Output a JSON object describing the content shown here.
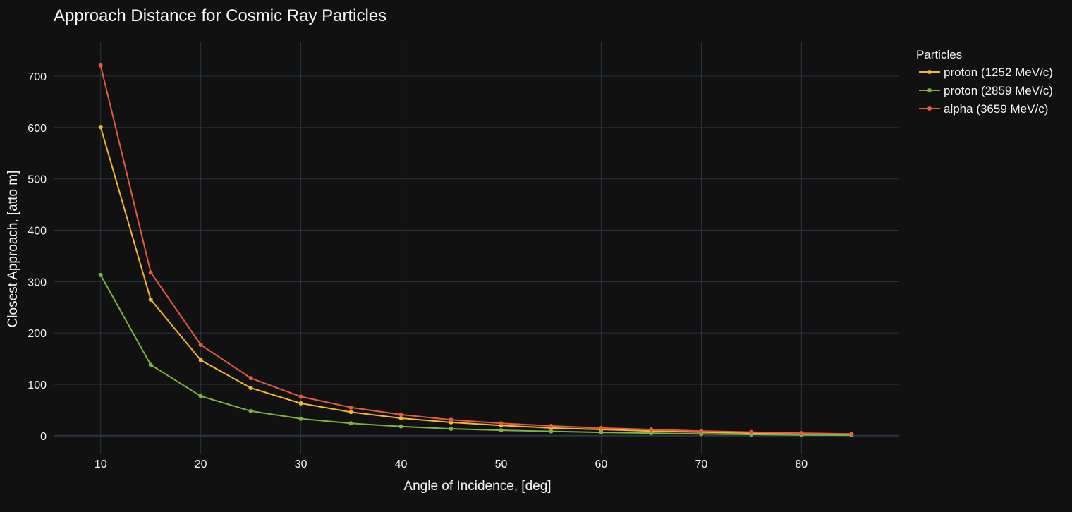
{
  "chart_data": {
    "type": "line",
    "title": "Approach Distance for Cosmic Ray Particles",
    "xlabel": "Angle of Incidence, [deg]",
    "ylabel": "Closest Approach, [atto m]",
    "x": [
      10,
      15,
      20,
      25,
      30,
      35,
      40,
      45,
      50,
      55,
      60,
      65,
      70,
      75,
      80,
      85
    ],
    "xlim": [
      5.3,
      89.7
    ],
    "ylim": [
      -36,
      766
    ],
    "xticks": [
      10,
      20,
      30,
      40,
      50,
      60,
      70,
      80
    ],
    "yticks": [
      0,
      100,
      200,
      300,
      400,
      500,
      600,
      700
    ],
    "grid": true,
    "legend": {
      "title": "Particles",
      "position": "top-right"
    },
    "series": [
      {
        "name": "proton (1252 MeV/c)",
        "color": "#f2b930",
        "values": [
          601,
          265,
          147,
          93,
          63,
          46,
          34,
          26,
          20,
          15,
          12,
          9,
          7,
          5,
          4,
          3
        ]
      },
      {
        "name": "proton (2859 MeV/c)",
        "color": "#7cb342",
        "values": [
          313,
          138,
          77,
          48,
          33,
          24,
          18,
          13.5,
          10.5,
          8.5,
          6.5,
          5,
          3.5,
          2.5,
          1.5,
          1
        ]
      },
      {
        "name": "alpha (3659 MeV/c)",
        "color": "#e55a41",
        "values": [
          721,
          318,
          177,
          112,
          76,
          55,
          41,
          31,
          24,
          19,
          15,
          12,
          9,
          7,
          5,
          3.5
        ]
      }
    ]
  }
}
